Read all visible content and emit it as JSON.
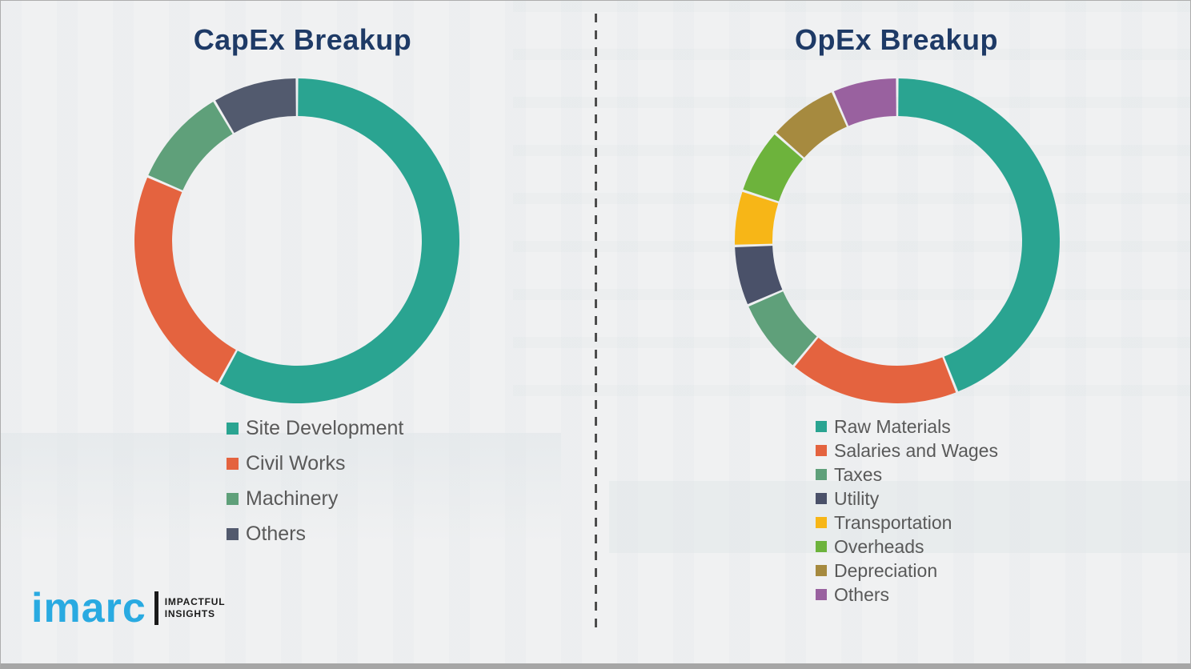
{
  "chart_data": [
    {
      "type": "pie",
      "id": "capex",
      "donut": true,
      "title": "CapEx Breakup",
      "labels": [
        "Site Development",
        "Civil Works",
        "Machinery",
        "Others"
      ],
      "values": [
        58,
        23.5,
        10,
        8.5
      ],
      "colors": [
        "#2aa491",
        "#e4633f",
        "#5fa07a",
        "#525a6e"
      ],
      "start_angle_deg": 0,
      "direction": "clockwise",
      "legend_position": "below"
    },
    {
      "type": "pie",
      "id": "opex",
      "donut": true,
      "title": "OpEx Breakup",
      "labels": [
        "Raw Materials",
        "Salaries and Wages",
        "Taxes",
        "Utility",
        "Transportation",
        "Overheads",
        "Depreciation",
        "Others"
      ],
      "values": [
        44,
        17,
        7.5,
        6,
        5.5,
        6.5,
        7,
        6.5
      ],
      "colors": [
        "#2aa491",
        "#e4633f",
        "#5fa07a",
        "#4a5169",
        "#f7b617",
        "#6db33c",
        "#a68a3f",
        "#99619f"
      ],
      "start_angle_deg": 0,
      "direction": "clockwise",
      "legend_position": "below"
    }
  ],
  "branding": {
    "logo_text": "imarc",
    "tagline_line1": "IMPACTFUL",
    "tagline_line2": "INSIGHTS",
    "logo_color": "#29aae1"
  },
  "title_color": "#1e3a66"
}
